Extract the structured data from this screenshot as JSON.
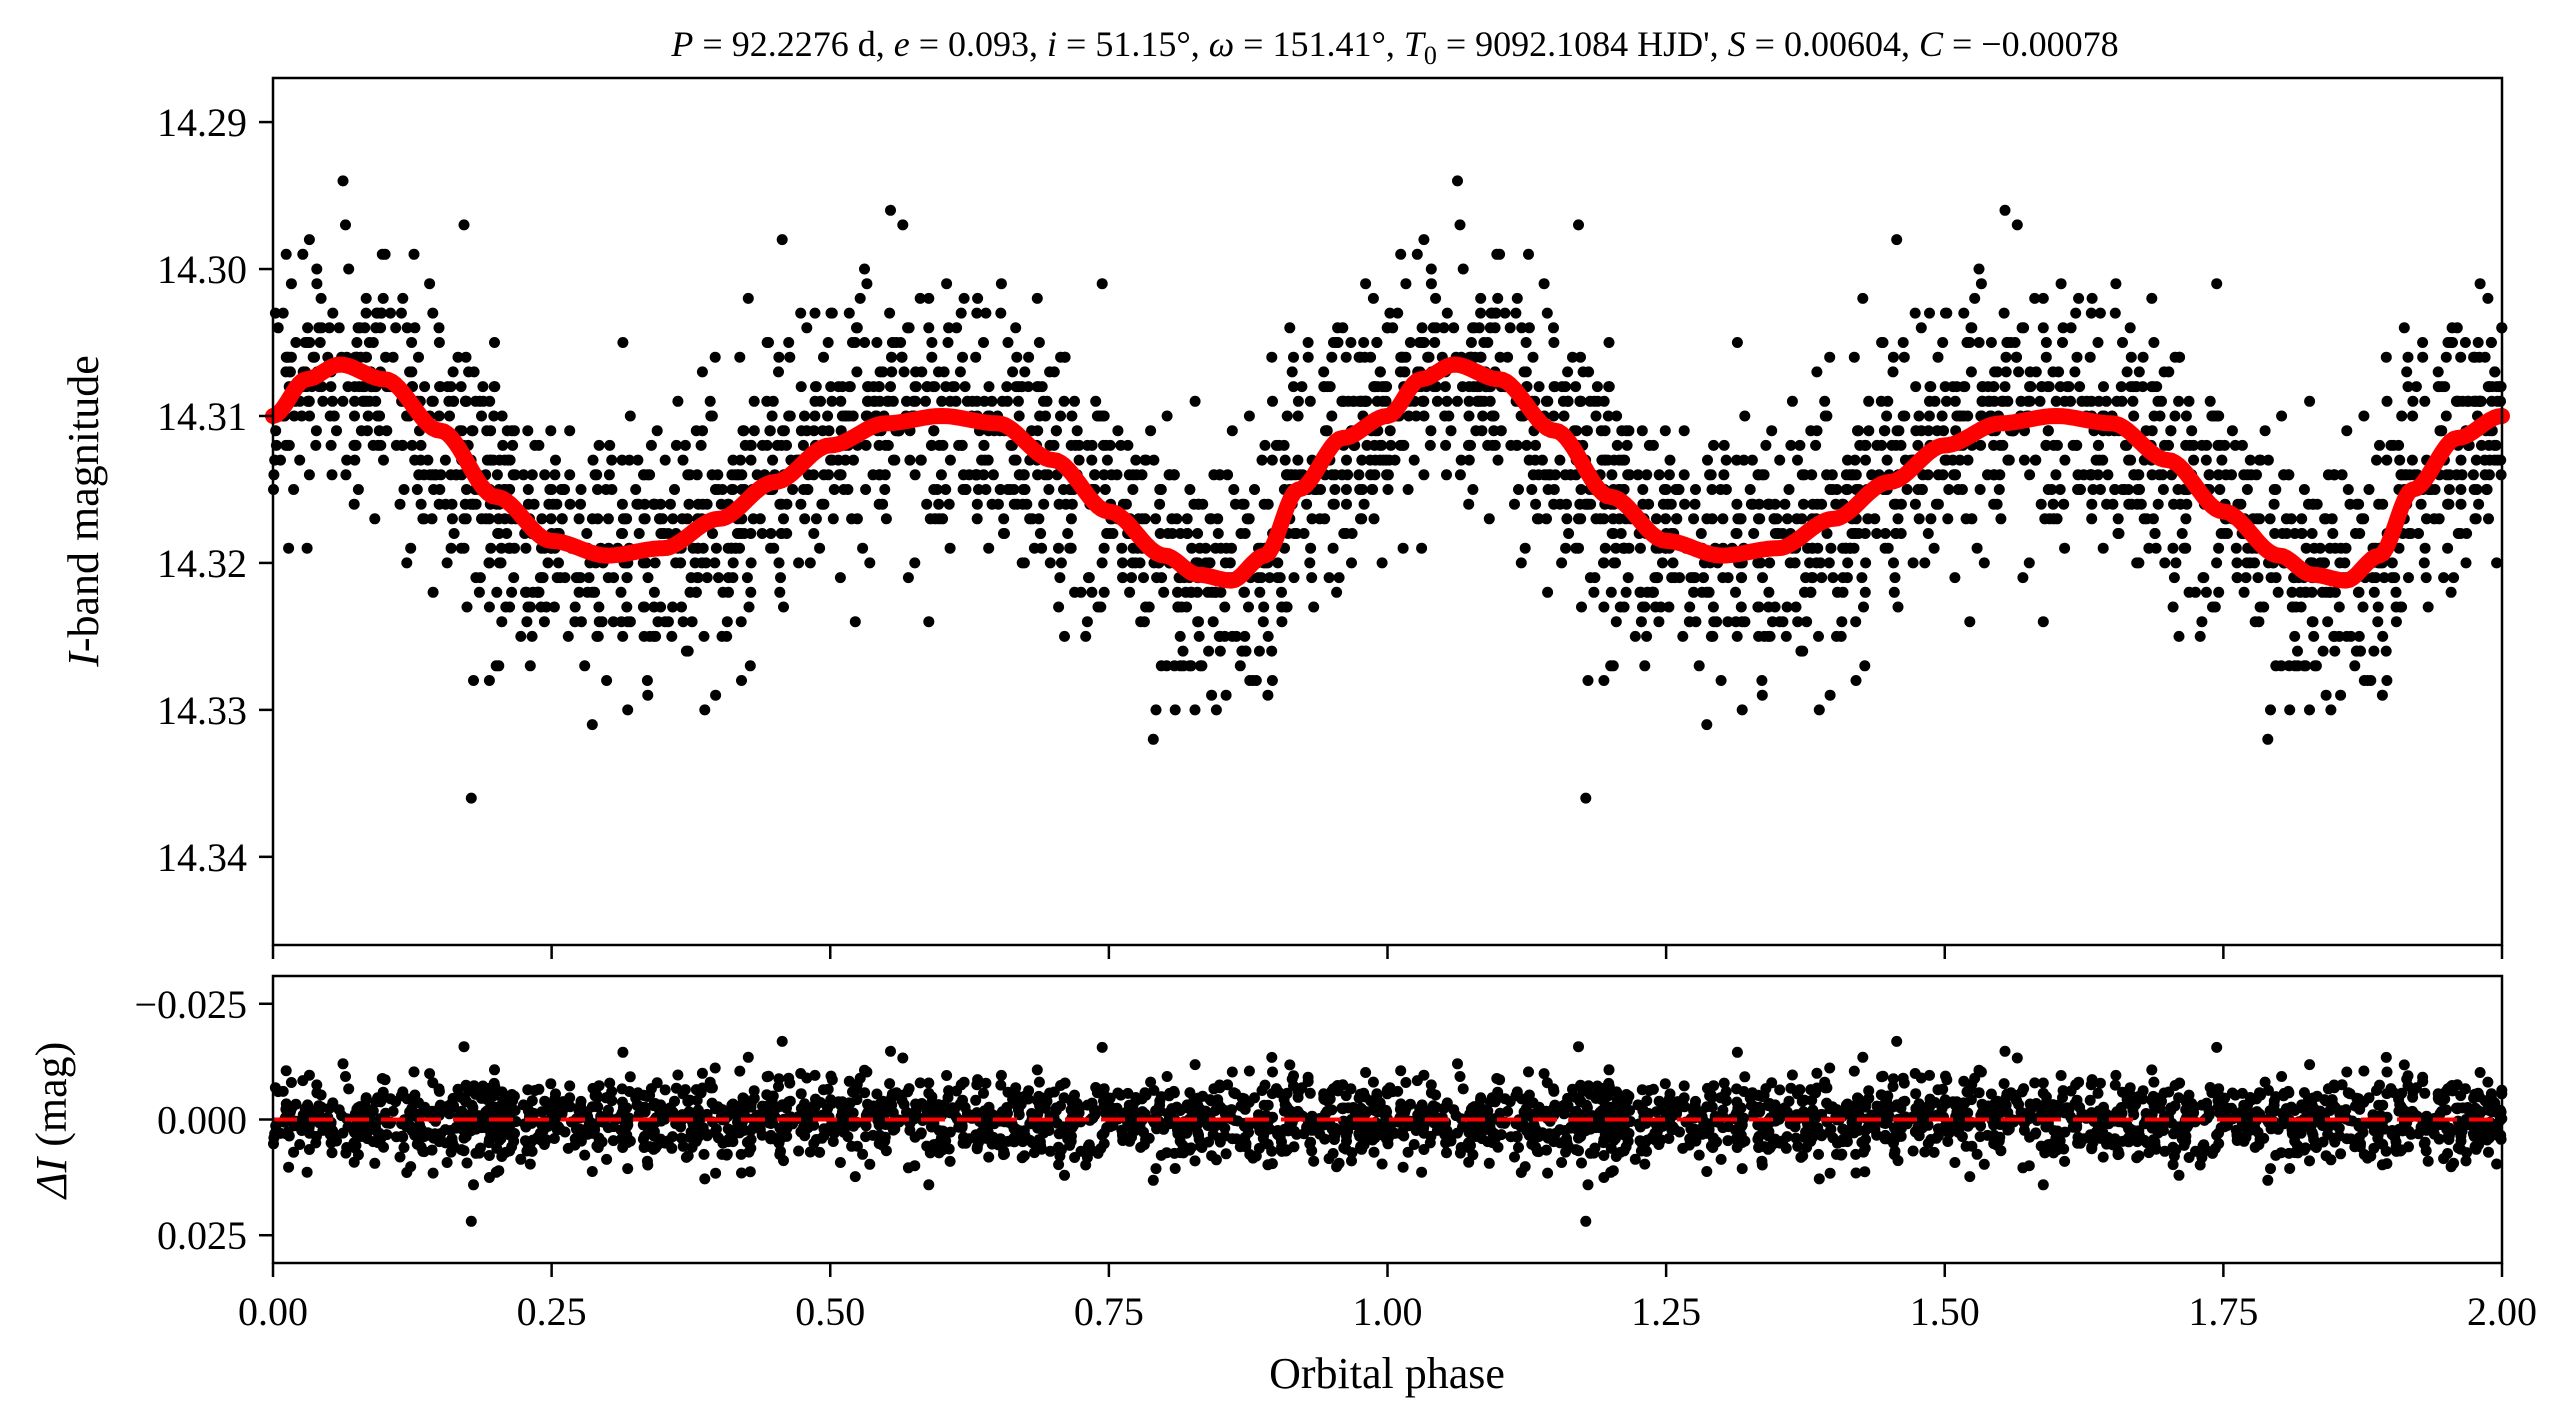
{
  "figure": {
    "title": {
      "p_sym": "P",
      "p_val": " = 92.2276 d, ",
      "e_sym": "e",
      "e_val": " = 0.093, ",
      "i_sym": "i",
      "i_val": " = 51.15°, ",
      "w_sym": "ω",
      "w_val": " = 151.41°, ",
      "t_sym": "T",
      "t_sub": "0",
      "t_val": " = 9092.1084 HJD', ",
      "s_sym": "S",
      "s_val": " = 0.00604, ",
      "c_sym": "C",
      "c_val": " = −0.00078"
    },
    "colors": {
      "points": "#000000",
      "model": "#ff0000",
      "zero_line": "#ff0000"
    }
  },
  "chart_data": [
    {
      "type": "scatter",
      "panel": "light-curve",
      "ylabel_italic": "I",
      "ylabel_rest": "-band magnitude",
      "xlim": [
        0.0,
        2.0
      ],
      "ylim": [
        14.346,
        14.287
      ],
      "y_inverted": true,
      "yticks": [
        14.29,
        14.3,
        14.31,
        14.32,
        14.33,
        14.34
      ],
      "ytick_labels": [
        "14.29",
        "14.30",
        "14.31",
        "14.32",
        "14.33",
        "14.34"
      ],
      "model": {
        "type": "line",
        "period_days": 92.2276,
        "phase": [
          0.0,
          0.03,
          0.06,
          0.1,
          0.15,
          0.2,
          0.25,
          0.3,
          0.35,
          0.4,
          0.45,
          0.5,
          0.55,
          0.6,
          0.65,
          0.7,
          0.75,
          0.8,
          0.83,
          0.86,
          0.89,
          0.92,
          0.96,
          1.0
        ],
        "magnitude": [
          14.31,
          14.3075,
          14.3065,
          14.3075,
          14.311,
          14.3155,
          14.3185,
          14.3195,
          14.319,
          14.317,
          14.3145,
          14.312,
          14.3105,
          14.31,
          14.3105,
          14.313,
          14.3165,
          14.3195,
          14.3208,
          14.3212,
          14.3195,
          14.315,
          14.3115,
          14.31
        ]
      },
      "points_summary": {
        "scatter_sigma_mag": 0.0045,
        "repeat_phase_offset": 1.0
      }
    },
    {
      "type": "scatter",
      "panel": "residuals",
      "ylabel_sym": "ΔI",
      "ylabel_rest": " (mag)",
      "xlabel": "Orbital phase",
      "xlim": [
        0.0,
        2.0
      ],
      "xticks": [
        0.0,
        0.25,
        0.5,
        0.75,
        1.0,
        1.25,
        1.5,
        1.75,
        2.0
      ],
      "xtick_labels": [
        "0.00",
        "0.25",
        "0.50",
        "0.75",
        "1.00",
        "1.25",
        "1.50",
        "1.75",
        "2.00"
      ],
      "ylim": [
        0.031,
        -0.031
      ],
      "y_inverted": true,
      "yticks": [
        -0.025,
        0.0,
        0.025
      ],
      "ytick_labels": [
        "−0.025",
        "0.000",
        "0.025"
      ],
      "zero_line": {
        "y": 0.0,
        "style": "dashed"
      },
      "points_summary": {
        "scatter_sigma_mag": 0.0045
      }
    }
  ]
}
